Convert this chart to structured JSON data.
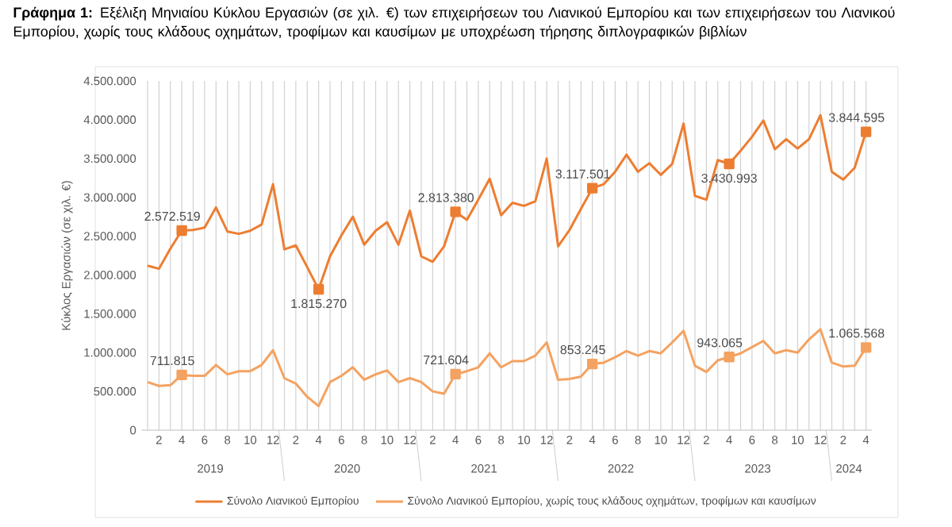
{
  "chart_data": {
    "type": "line",
    "title": "**Γράφημα 1:** Εξέλιξη Μηνιαίου Κύκλου Εργασιών (σε χιλ. €) των επιχειρήσεων του Λιανικού Εμπορίου και των επιχειρήσεων του Λιανικού Εμπορίου, χωρίς τους κλάδους οχημάτων, τροφίμων και καυσίμων με υποχρέωση τήρησης διπλογραφικών βιβλίων",
    "ylabel": "Κύκλος Εργασιών (σε χιλ. €)",
    "x": [
      "2019-01",
      "2019-02",
      "2019-03",
      "2019-04",
      "2019-05",
      "2019-06",
      "2019-07",
      "2019-08",
      "2019-09",
      "2019-10",
      "2019-11",
      "2019-12",
      "2020-01",
      "2020-02",
      "2020-03",
      "2020-04",
      "2020-05",
      "2020-06",
      "2020-07",
      "2020-08",
      "2020-09",
      "2020-10",
      "2020-11",
      "2020-12",
      "2021-01",
      "2021-02",
      "2021-03",
      "2021-04",
      "2021-05",
      "2021-06",
      "2021-07",
      "2021-08",
      "2021-09",
      "2021-10",
      "2021-11",
      "2021-12",
      "2022-01",
      "2022-02",
      "2022-03",
      "2022-04",
      "2022-05",
      "2022-06",
      "2022-07",
      "2022-08",
      "2022-09",
      "2022-10",
      "2022-11",
      "2022-12",
      "2023-01",
      "2023-02",
      "2023-03",
      "2023-04",
      "2023-05",
      "2023-06",
      "2023-07",
      "2023-08",
      "2023-09",
      "2023-10",
      "2023-11",
      "2023-12",
      "2024-01",
      "2024-02",
      "2024-03",
      "2024-04"
    ],
    "series": [
      {
        "name": "Σύνολο Λιανικού Εμπορίου",
        "color": "#ed7d31",
        "values": [
          2120000,
          2080000,
          2340000,
          2572519,
          2580000,
          2610000,
          2870000,
          2560000,
          2530000,
          2570000,
          2650000,
          3170000,
          2330000,
          2380000,
          2100000,
          1815270,
          2240000,
          2510000,
          2750000,
          2390000,
          2570000,
          2680000,
          2390000,
          2830000,
          2240000,
          2170000,
          2370000,
          2813380,
          2710000,
          2970000,
          3240000,
          2770000,
          2930000,
          2890000,
          2950000,
          3500000,
          2370000,
          2580000,
          2850000,
          3117501,
          3170000,
          3330000,
          3550000,
          3330000,
          3440000,
          3290000,
          3430000,
          3950000,
          3020000,
          2970000,
          3480000,
          3430993,
          3600000,
          3780000,
          3990000,
          3620000,
          3750000,
          3630000,
          3750000,
          4060000,
          3330000,
          3230000,
          3380000,
          3844595
        ],
        "value_labels": [
          null,
          null,
          null,
          "2.572.519",
          null,
          null,
          null,
          null,
          null,
          null,
          null,
          null,
          null,
          null,
          null,
          "1.815.270",
          null,
          null,
          null,
          null,
          null,
          null,
          null,
          null,
          null,
          null,
          null,
          "2.813.380",
          null,
          null,
          null,
          null,
          null,
          null,
          null,
          null,
          null,
          null,
          null,
          "3.117.501",
          null,
          null,
          null,
          null,
          null,
          null,
          null,
          null,
          null,
          null,
          null,
          "3.430.993",
          null,
          null,
          null,
          null,
          null,
          null,
          null,
          null,
          null,
          null,
          null,
          "3.844.595"
        ]
      },
      {
        "name": "Σύνολο Λιανικού Εμπορίου, χωρίς τους κλάδους οχημάτων, τροφίμων και καυσίμων",
        "color": "#f4a261",
        "values": [
          620000,
          570000,
          580000,
          711815,
          700000,
          700000,
          840000,
          720000,
          760000,
          760000,
          840000,
          1030000,
          670000,
          600000,
          430000,
          310000,
          620000,
          700000,
          810000,
          650000,
          720000,
          770000,
          620000,
          670000,
          620000,
          500000,
          470000,
          721604,
          760000,
          810000,
          990000,
          810000,
          890000,
          890000,
          960000,
          1130000,
          650000,
          660000,
          690000,
          853245,
          870000,
          940000,
          1020000,
          960000,
          1020000,
          990000,
          1130000,
          1280000,
          830000,
          750000,
          900000,
          943065,
          990000,
          1070000,
          1150000,
          990000,
          1030000,
          1000000,
          1170000,
          1300000,
          870000,
          820000,
          830000,
          1065568
        ],
        "value_labels": [
          null,
          null,
          null,
          "711.815",
          null,
          null,
          null,
          null,
          null,
          null,
          null,
          null,
          null,
          null,
          null,
          null,
          null,
          null,
          null,
          null,
          null,
          null,
          null,
          null,
          null,
          null,
          null,
          "721.604",
          null,
          null,
          null,
          null,
          null,
          null,
          null,
          null,
          null,
          null,
          null,
          "853.245",
          null,
          null,
          null,
          null,
          null,
          null,
          null,
          null,
          null,
          null,
          null,
          "943.065",
          null,
          null,
          null,
          null,
          null,
          null,
          null,
          null,
          null,
          null,
          null,
          "1.065.568"
        ]
      }
    ],
    "xlim": [
      "2018-12-16",
      "2024-04-16"
    ],
    "xticks": [
      {
        "value": "2019-01",
        "label": null
      },
      {
        "value": "2019-02",
        "label": "2"
      },
      {
        "value": "2019-03",
        "label": null
      },
      {
        "value": "2019-04",
        "label": "4"
      },
      {
        "value": "2019-05",
        "label": null
      },
      {
        "value": "2019-06",
        "label": "6"
      },
      {
        "value": "2019-07",
        "label": null
      },
      {
        "value": "2019-08",
        "label": "8"
      },
      {
        "value": "2019-09",
        "label": null
      },
      {
        "value": "2019-10",
        "label": "10"
      },
      {
        "value": "2019-11",
        "label": null
      },
      {
        "value": "2019-12",
        "label": "12"
      },
      {
        "value": "2020-01",
        "label": null
      },
      {
        "value": "2020-02",
        "label": "2"
      },
      {
        "value": "2020-03",
        "label": null
      },
      {
        "value": "2020-04",
        "label": "4"
      },
      {
        "value": "2020-05",
        "label": null
      },
      {
        "value": "2020-06",
        "label": "6"
      },
      {
        "value": "2020-07",
        "label": null
      },
      {
        "value": "2020-08",
        "label": "8"
      },
      {
        "value": "2020-09",
        "label": null
      },
      {
        "value": "2020-10",
        "label": "10"
      },
      {
        "value": "2020-11",
        "label": null
      },
      {
        "value": "2020-12",
        "label": "12"
      },
      {
        "value": "2021-01",
        "label": null
      },
      {
        "value": "2021-02",
        "label": "2"
      },
      {
        "value": "2021-03",
        "label": null
      },
      {
        "value": "2021-04",
        "label": "4"
      },
      {
        "value": "2021-05",
        "label": null
      },
      {
        "value": "2021-06",
        "label": "6"
      },
      {
        "value": "2021-07",
        "label": null
      },
      {
        "value": "2021-08",
        "label": "8"
      },
      {
        "value": "2021-09",
        "label": null
      },
      {
        "value": "2021-10",
        "label": "10"
      },
      {
        "value": "2021-11",
        "label": null
      },
      {
        "value": "2021-12",
        "label": "12"
      },
      {
        "value": "2022-01",
        "label": null
      },
      {
        "value": "2022-02",
        "label": "2"
      },
      {
        "value": "2022-03",
        "label": null
      },
      {
        "value": "2022-04",
        "label": "4"
      },
      {
        "value": "2022-05",
        "label": null
      },
      {
        "value": "2022-06",
        "label": "6"
      },
      {
        "value": "2022-07",
        "label": null
      },
      {
        "value": "2022-08",
        "label": "8"
      },
      {
        "value": "2022-09",
        "label": null
      },
      {
        "value": "2022-10",
        "label": "10"
      },
      {
        "value": "2022-11",
        "label": null
      },
      {
        "value": "2022-12",
        "label": "12"
      },
      {
        "value": "2023-01",
        "label": null
      },
      {
        "value": "2023-02",
        "label": "2"
      },
      {
        "value": "2023-03",
        "label": null
      },
      {
        "value": "2023-04",
        "label": "4"
      },
      {
        "value": "2023-05",
        "label": null
      },
      {
        "value": "2023-06",
        "label": "6"
      },
      {
        "value": "2023-07",
        "label": null
      },
      {
        "value": "2023-08",
        "label": "8"
      },
      {
        "value": "2023-09",
        "label": null
      },
      {
        "value": "2023-10",
        "label": "10"
      },
      {
        "value": "2023-11",
        "label": null
      },
      {
        "value": "2023-12",
        "label": "12"
      },
      {
        "value": "2024-01",
        "label": null
      },
      {
        "value": "2024-02",
        "label": "2"
      },
      {
        "value": "2024-03",
        "label": null
      },
      {
        "value": "2024-04",
        "label": "4"
      }
    ],
    "ylim": [
      0,
      4500000
    ],
    "yticks": [
      {
        "value": 0,
        "label": "0"
      },
      {
        "value": 500000,
        "label": "500.000"
      },
      {
        "value": 1000000,
        "label": "1.000.000"
      },
      {
        "value": 1500000,
        "label": "1.500.000"
      },
      {
        "value": 2000000,
        "label": "2.000.000"
      },
      {
        "value": 2500000,
        "label": "2.500.000"
      },
      {
        "value": 3000000,
        "label": "3.000.000"
      },
      {
        "value": 3500000,
        "label": "3.500.000"
      },
      {
        "value": 4000000,
        "label": "4.000.000"
      },
      {
        "value": 4500000,
        "label": "4.500.000"
      }
    ],
    "annotations": [
      "2019",
      "2020",
      "2021",
      "2022",
      "2023",
      "2024"
    ],
    "grid": "x",
    "legend": "bottom",
    "line_style": "solid"
  }
}
